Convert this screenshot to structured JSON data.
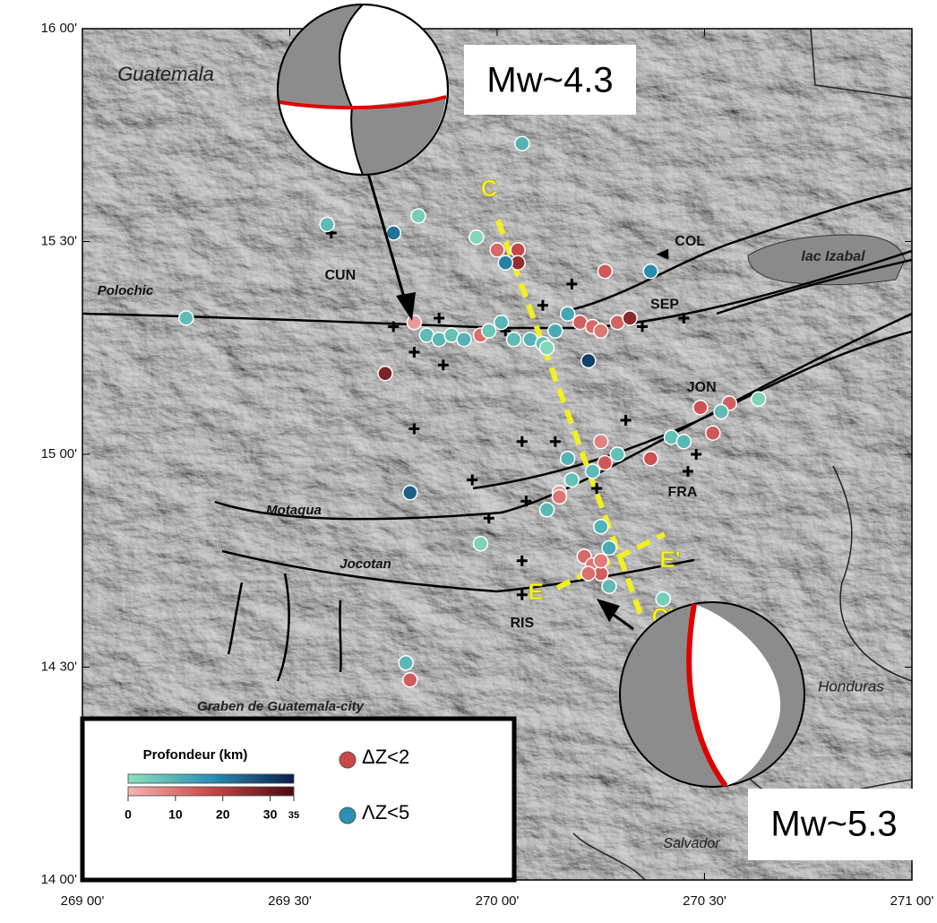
{
  "map": {
    "xlim": [
      269,
      271
    ],
    "ylim": [
      14,
      16
    ],
    "xticks": [
      {
        "value": 269,
        "label": "269 00'"
      },
      {
        "value": 269.5,
        "label": "269 30'"
      },
      {
        "value": 270,
        "label": "270 00'"
      },
      {
        "value": 270.5,
        "label": "270 30'"
      },
      {
        "value": 271,
        "label": "271 00'"
      }
    ],
    "yticks": [
      {
        "value": 14,
        "label": "14 00'"
      },
      {
        "value": 14.5,
        "label": "14 30'"
      },
      {
        "value": 15,
        "label": "15 00'"
      },
      {
        "value": 15.5,
        "label": "15 30'"
      },
      {
        "value": 16,
        "label": "16 00'"
      }
    ],
    "places": [
      "Guatemala",
      "lac Izabal",
      "Honduras",
      "Salvador",
      "Graben de Guatemala-city"
    ],
    "faults": [
      "Polochic",
      "Motagua",
      "Jocotan"
    ],
    "profiles": [
      "C",
      "C'",
      "E",
      "E'"
    ],
    "mechanisms": [
      "Mw~4.3",
      "Mw~5.3"
    ],
    "stations": [
      {
        "name": "CUN",
        "lon": 269.6,
        "lat": 15.52
      },
      {
        "name": "COL",
        "lon": 270.4,
        "lat": 15.47
      },
      {
        "name": "SEP",
        "lon": 270.35,
        "lat": 15.3
      },
      {
        "name": "JON",
        "lon": 270.48,
        "lat": 15.0
      },
      {
        "name": "FRA",
        "lon": 270.46,
        "lat": 14.96
      },
      {
        "name": "RIS",
        "lon": 270.06,
        "lat": 14.67
      },
      {
        "lon": 269.75,
        "lat": 15.3
      },
      {
        "lon": 269.86,
        "lat": 15.32
      },
      {
        "lon": 269.8,
        "lat": 15.24
      },
      {
        "lon": 269.87,
        "lat": 15.21
      },
      {
        "lon": 270.02,
        "lat": 15.29
      },
      {
        "lon": 270.18,
        "lat": 15.4
      },
      {
        "lon": 270.11,
        "lat": 15.35
      },
      {
        "lon": 270.45,
        "lat": 15.32
      },
      {
        "lon": 269.8,
        "lat": 15.06
      },
      {
        "lon": 270.06,
        "lat": 15.03
      },
      {
        "lon": 270.14,
        "lat": 15.03
      },
      {
        "lon": 270.31,
        "lat": 15.08
      },
      {
        "lon": 269.94,
        "lat": 14.94
      },
      {
        "lon": 270.07,
        "lat": 14.89
      },
      {
        "lon": 269.98,
        "lat": 14.85
      },
      {
        "lon": 270.06,
        "lat": 14.75
      },
      {
        "lon": 270.24,
        "lat": 14.92
      }
    ],
    "events": [
      {
        "lon": 270.06,
        "lat": 15.73,
        "depth": 10,
        "group": 1
      },
      {
        "lon": 269.59,
        "lat": 15.54,
        "depth": 8,
        "group": 1
      },
      {
        "lon": 269.81,
        "lat": 15.56,
        "depth": 4,
        "group": 1
      },
      {
        "lon": 269.75,
        "lat": 15.52,
        "depth": 22,
        "group": 1
      },
      {
        "lon": 269.95,
        "lat": 15.51,
        "depth": 2,
        "group": 1
      },
      {
        "lon": 270.0,
        "lat": 15.48,
        "depth": 12,
        "group": 0
      },
      {
        "lon": 270.05,
        "lat": 15.48,
        "depth": 18,
        "group": 0
      },
      {
        "lon": 270.05,
        "lat": 15.45,
        "depth": 25,
        "group": 0
      },
      {
        "lon": 270.02,
        "lat": 15.45,
        "depth": 20,
        "group": 1
      },
      {
        "lon": 270.26,
        "lat": 15.43,
        "depth": 15,
        "group": 0
      },
      {
        "lon": 270.37,
        "lat": 15.43,
        "depth": 18,
        "group": 1
      },
      {
        "lon": 269.25,
        "lat": 15.32,
        "depth": 8,
        "group": 1
      },
      {
        "lon": 269.8,
        "lat": 15.31,
        "depth": 4,
        "group": 0
      },
      {
        "lon": 269.83,
        "lat": 15.28,
        "depth": 8,
        "group": 1
      },
      {
        "lon": 269.86,
        "lat": 15.27,
        "depth": 9,
        "group": 1
      },
      {
        "lon": 269.89,
        "lat": 15.28,
        "depth": 7,
        "group": 1
      },
      {
        "lon": 269.92,
        "lat": 15.27,
        "depth": 10,
        "group": 1
      },
      {
        "lon": 269.96,
        "lat": 15.28,
        "depth": 11,
        "group": 0
      },
      {
        "lon": 269.98,
        "lat": 15.29,
        "depth": 6,
        "group": 1
      },
      {
        "lon": 270.01,
        "lat": 15.31,
        "depth": 9,
        "group": 1
      },
      {
        "lon": 270.04,
        "lat": 15.27,
        "depth": 8,
        "group": 1
      },
      {
        "lon": 270.08,
        "lat": 15.27,
        "depth": 10,
        "group": 1
      },
      {
        "lon": 270.11,
        "lat": 15.26,
        "depth": 7,
        "group": 1
      },
      {
        "lon": 270.14,
        "lat": 15.29,
        "depth": 12,
        "group": 1
      },
      {
        "lon": 270.17,
        "lat": 15.33,
        "depth": 13,
        "group": 1
      },
      {
        "lon": 270.2,
        "lat": 15.31,
        "depth": 14,
        "group": 0
      },
      {
        "lon": 270.23,
        "lat": 15.3,
        "depth": 12,
        "group": 0
      },
      {
        "lon": 270.25,
        "lat": 15.29,
        "depth": 10,
        "group": 0
      },
      {
        "lon": 270.29,
        "lat": 15.31,
        "depth": 13,
        "group": 0
      },
      {
        "lon": 270.32,
        "lat": 15.32,
        "depth": 26,
        "group": 0
      },
      {
        "lon": 270.12,
        "lat": 15.25,
        "depth": 2,
        "group": 1
      },
      {
        "lon": 269.73,
        "lat": 15.19,
        "depth": 28,
        "group": 0
      },
      {
        "lon": 270.22,
        "lat": 15.22,
        "depth": 30,
        "group": 1
      },
      {
        "lon": 270.49,
        "lat": 15.11,
        "depth": 16,
        "group": 0
      },
      {
        "lon": 270.56,
        "lat": 15.12,
        "depth": 14,
        "group": 0
      },
      {
        "lon": 270.54,
        "lat": 15.1,
        "depth": 8,
        "group": 1
      },
      {
        "lon": 270.63,
        "lat": 15.13,
        "depth": 3,
        "group": 1
      },
      {
        "lon": 270.52,
        "lat": 15.05,
        "depth": 15,
        "group": 0
      },
      {
        "lon": 270.42,
        "lat": 15.04,
        "depth": 7,
        "group": 1
      },
      {
        "lon": 270.45,
        "lat": 15.03,
        "depth": 9,
        "group": 1
      },
      {
        "lon": 270.25,
        "lat": 15.03,
        "depth": 8,
        "group": 0
      },
      {
        "lon": 270.26,
        "lat": 14.98,
        "depth": 15,
        "group": 0
      },
      {
        "lon": 270.29,
        "lat": 15.0,
        "depth": 7,
        "group": 1
      },
      {
        "lon": 270.37,
        "lat": 14.99,
        "depth": 16,
        "group": 0
      },
      {
        "lon": 270.23,
        "lat": 14.96,
        "depth": 8,
        "group": 1
      },
      {
        "lon": 270.18,
        "lat": 14.94,
        "depth": 7,
        "group": 1
      },
      {
        "lon": 270.15,
        "lat": 14.91,
        "depth": 4,
        "group": 0
      },
      {
        "lon": 270.15,
        "lat": 14.9,
        "depth": 10,
        "group": 0
      },
      {
        "lon": 270.12,
        "lat": 14.87,
        "depth": 9,
        "group": 1
      },
      {
        "lon": 270.17,
        "lat": 14.99,
        "depth": 10,
        "group": 1
      },
      {
        "lon": 269.79,
        "lat": 14.91,
        "depth": 25,
        "group": 1
      },
      {
        "lon": 269.96,
        "lat": 14.79,
        "depth": 3,
        "group": 1
      },
      {
        "lon": 270.21,
        "lat": 14.76,
        "depth": 12,
        "group": 0
      },
      {
        "lon": 270.23,
        "lat": 14.74,
        "depth": 10,
        "group": 0
      },
      {
        "lon": 270.25,
        "lat": 14.72,
        "depth": 14,
        "group": 0
      },
      {
        "lon": 270.22,
        "lat": 14.72,
        "depth": 11,
        "group": 0
      },
      {
        "lon": 270.25,
        "lat": 14.75,
        "depth": 9,
        "group": 0
      },
      {
        "lon": 270.27,
        "lat": 14.78,
        "depth": 12,
        "group": 1
      },
      {
        "lon": 270.25,
        "lat": 14.83,
        "depth": 10,
        "group": 1
      },
      {
        "lon": 270.27,
        "lat": 14.69,
        "depth": 8,
        "group": 1
      },
      {
        "lon": 270.4,
        "lat": 14.66,
        "depth": 4,
        "group": 1
      },
      {
        "lon": 269.78,
        "lat": 14.51,
        "depth": 9,
        "group": 1
      },
      {
        "lon": 269.79,
        "lat": 14.47,
        "depth": 14,
        "group": 0
      }
    ],
    "legend": {
      "title": "Profondeur (km)",
      "clim": [
        0,
        35
      ],
      "ticks": [
        0,
        10,
        20,
        30,
        35
      ],
      "groups": [
        {
          "label": "ΔZ<2",
          "colors": [
            "#f4b4b0",
            "#c84848",
            "#4a0a10"
          ]
        },
        {
          "label": "ΛZ<5",
          "colors": [
            "#8ee0b8",
            "#2a90b4",
            "#0a1e4a"
          ]
        }
      ]
    }
  }
}
